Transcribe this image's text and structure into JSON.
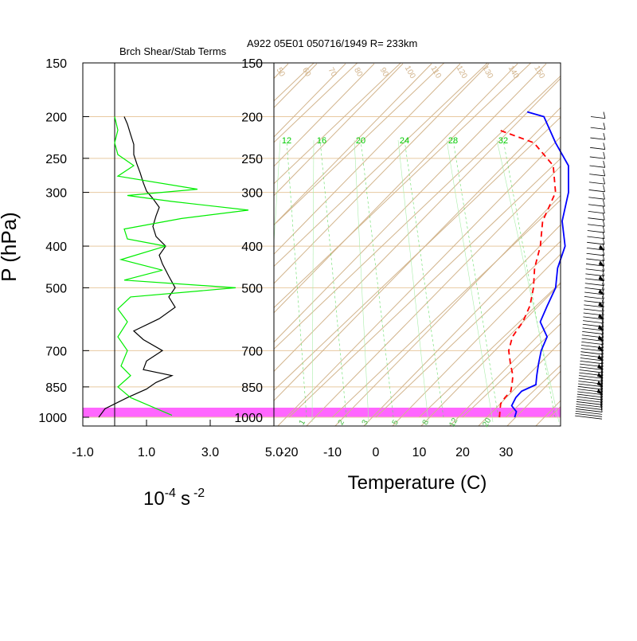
{
  "header": {
    "left_title": "Brch Shear/Stab Terms",
    "right_title": "A922 05E01 050716/1949 R= 233km"
  },
  "chart_data": [
    {
      "type": "line",
      "panel": "bulk-richardson-terms",
      "ylabel": "P (hPa)",
      "xlabel_base": "10",
      "xlabel_exp1": "-4",
      "xlabel_unit": "s",
      "xlabel_exp2": "-2",
      "y_scale": "log",
      "y_ticks": [
        "150",
        "200",
        "250",
        "300",
        "400",
        "500",
        "700",
        "850",
        "1000"
      ],
      "x_ticks": [
        "-1.0",
        "1.0",
        "3.0",
        "5.0"
      ],
      "xlim": [
        -1.0,
        5.0
      ],
      "series": [
        {
          "color": "#000000",
          "points": [
            [
              0.3,
              200
            ],
            [
              0.4,
              208
            ],
            [
              0.5,
              220
            ],
            [
              0.6,
              232
            ],
            [
              0.6,
              245
            ],
            [
              0.7,
              258
            ],
            [
              0.8,
              270
            ],
            [
              0.9,
              285
            ],
            [
              1.0,
              298
            ],
            [
              1.2,
              310
            ],
            [
              1.4,
              325
            ],
            [
              1.3,
              340
            ],
            [
              1.2,
              360
            ],
            [
              1.3,
              380
            ],
            [
              1.6,
              400
            ],
            [
              1.4,
              420
            ],
            [
              1.5,
              440
            ],
            [
              1.7,
              470
            ],
            [
              1.9,
              500
            ],
            [
              1.7,
              525
            ],
            [
              1.9,
              555
            ],
            [
              1.4,
              590
            ],
            [
              0.6,
              630
            ],
            [
              0.9,
              660
            ],
            [
              1.5,
              700
            ],
            [
              1.0,
              740
            ],
            [
              0.9,
              775
            ],
            [
              1.8,
              800
            ],
            [
              1.3,
              830
            ],
            [
              1.0,
              860
            ],
            [
              0.4,
              900
            ],
            [
              -0.3,
              955
            ],
            [
              -0.5,
              1000
            ]
          ]
        },
        {
          "color": "#00ee00",
          "points": [
            [
              0.0,
              200
            ],
            [
              0.1,
              215
            ],
            [
              0.0,
              230
            ],
            [
              0.1,
              245
            ],
            [
              0.6,
              260
            ],
            [
              0.1,
              275
            ],
            [
              2.6,
              295
            ],
            [
              0.4,
              305
            ],
            [
              1.8,
              315
            ],
            [
              4.2,
              330
            ],
            [
              2.1,
              345
            ],
            [
              0.3,
              365
            ],
            [
              0.4,
              385
            ],
            [
              1.6,
              400
            ],
            [
              0.2,
              430
            ],
            [
              1.5,
              455
            ],
            [
              0.3,
              480
            ],
            [
              3.8,
              500
            ],
            [
              0.5,
              525
            ],
            [
              0.1,
              560
            ],
            [
              0.4,
              600
            ],
            [
              0.1,
              650
            ],
            [
              0.4,
              700
            ],
            [
              0.2,
              760
            ],
            [
              0.5,
              800
            ],
            [
              0.1,
              850
            ],
            [
              0.5,
              900
            ],
            [
              1.8,
              990
            ]
          ]
        }
      ]
    },
    {
      "type": "line",
      "panel": "skew-t",
      "xlabel": "Temperature (C)",
      "y_scale": "log",
      "skewed": true,
      "y_ticks": [
        "150",
        "200",
        "250",
        "300",
        "400",
        "500",
        "700",
        "850",
        "1000"
      ],
      "x_ticks": [
        "-20",
        "-10",
        "0",
        "10",
        "20",
        "30"
      ],
      "mixing_ratio_labels": [
        "12",
        "16",
        "20",
        "24",
        "28",
        "32"
      ],
      "dry_adiabat_labels": [
        "50",
        "60",
        "70",
        "80",
        "90",
        "100",
        "110",
        "120",
        "130",
        "140",
        "150"
      ],
      "bottom_labels": [
        "1",
        "2",
        "3",
        "5",
        "8",
        "12",
        "20"
      ],
      "series": [
        {
          "style": "solid",
          "color": "#0000ff",
          "points": [
            [
              32.0,
              1000
            ],
            [
              31.0,
              970
            ],
            [
              28.5,
              940
            ],
            [
              27.5,
              900
            ],
            [
              27.3,
              870
            ],
            [
              29.0,
              840
            ],
            [
              27.0,
              800
            ],
            [
              24.5,
              750
            ],
            [
              22.0,
              700
            ],
            [
              20.0,
              650
            ],
            [
              14.8,
              600
            ],
            [
              12.5,
              550
            ],
            [
              10.1,
              500
            ],
            [
              5.8,
              450
            ],
            [
              2.2,
              400
            ],
            [
              -4.5,
              350
            ],
            [
              -10.0,
              300
            ],
            [
              -16.5,
              260
            ],
            [
              -25.0,
              230
            ],
            [
              -34.0,
              200
            ],
            [
              -39.0,
              195
            ]
          ]
        },
        {
          "style": "dashed",
          "color": "#ff0000",
          "points": [
            [
              28.5,
              1000
            ],
            [
              27.0,
              965
            ],
            [
              25.5,
              930
            ],
            [
              25.0,
              900
            ],
            [
              24.8,
              870
            ],
            [
              23.5,
              840
            ],
            [
              21.5,
              800
            ],
            [
              18.0,
              750
            ],
            [
              14.5,
              700
            ],
            [
              12.0,
              650
            ],
            [
              10.8,
              600
            ],
            [
              8.5,
              550
            ],
            [
              5.0,
              500
            ],
            [
              0.5,
              450
            ],
            [
              -3.5,
              400
            ],
            [
              -9.0,
              350
            ],
            [
              -13.0,
              300
            ],
            [
              -20.0,
              260
            ],
            [
              -30.0,
              230
            ],
            [
              -41.0,
              215
            ]
          ]
        }
      ]
    }
  ]
}
